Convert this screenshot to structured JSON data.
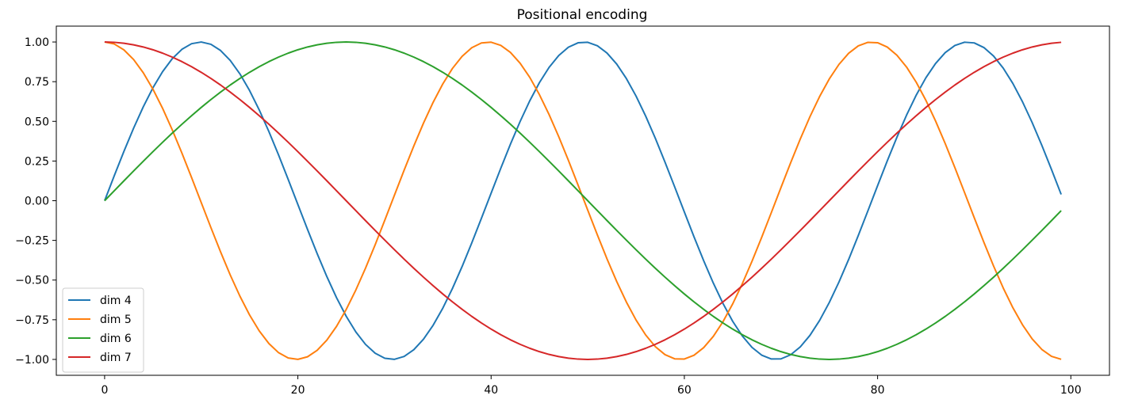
{
  "chart_data": {
    "type": "line",
    "title": "Positional encoding",
    "xlabel": "",
    "ylabel": "",
    "xlim": [
      -5,
      104
    ],
    "ylim": [
      -1.1,
      1.1
    ],
    "xticks": [
      0,
      20,
      40,
      60,
      80,
      100
    ],
    "yticks": [
      1.0,
      0.75,
      0.5,
      0.25,
      0.0,
      -0.25,
      -0.5,
      -0.75,
      -1.0
    ],
    "ytick_labels": [
      "1.00",
      "0.75",
      "0.50",
      "0.25",
      "0.00",
      "−0.25",
      "−0.50",
      "−0.75",
      "−1.00"
    ],
    "xtick_labels": [
      "0",
      "20",
      "40",
      "60",
      "80",
      "100"
    ],
    "grid": false,
    "legend_position": "lower-left",
    "x": {
      "start": 0,
      "end": 99,
      "step": 1
    },
    "series": [
      {
        "name": "dim 4",
        "color": "#1f77b4",
        "function": "sin",
        "period": 39.7
      },
      {
        "name": "dim 5",
        "color": "#ff7f0e",
        "function": "cos",
        "period": 39.7
      },
      {
        "name": "dim 6",
        "color": "#2ca02c",
        "function": "sin",
        "period": 100
      },
      {
        "name": "dim 7",
        "color": "#d62728",
        "function": "cos",
        "period": 100
      }
    ]
  }
}
